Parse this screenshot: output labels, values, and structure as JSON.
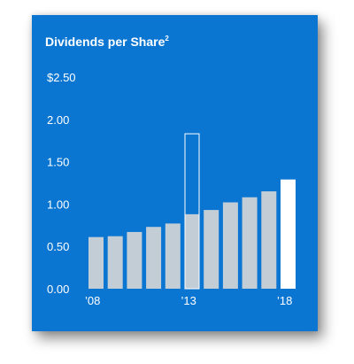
{
  "chart_data": {
    "type": "bar",
    "title": "Dividends per Share",
    "title_superscript": "2",
    "categories": [
      "2008",
      "2009",
      "2010",
      "2011",
      "2012",
      "2013",
      "2014",
      "2015",
      "2016",
      "2017",
      "2018"
    ],
    "values": [
      0.61,
      0.62,
      0.67,
      0.73,
      0.77,
      0.88,
      0.93,
      1.02,
      1.08,
      1.15,
      1.29
    ],
    "outline_bar": {
      "category": "2013",
      "value": 1.83
    },
    "highlight_category": "2018",
    "ylim": [
      0,
      2.5
    ],
    "y_ticks": [
      {
        "value": 2.5,
        "label": "$2.50"
      },
      {
        "value": 2.0,
        "label": "2.00"
      },
      {
        "value": 1.5,
        "label": "1.50"
      },
      {
        "value": 1.0,
        "label": "1.00"
      },
      {
        "value": 0.5,
        "label": "0.50"
      },
      {
        "value": 0.0,
        "label": "0.00"
      }
    ],
    "x_tick_labels": [
      {
        "category": "2008",
        "label": "’08"
      },
      {
        "category": "2013",
        "label": "’13"
      },
      {
        "category": "2018",
        "label": "’18"
      }
    ],
    "grid": false,
    "legend": "none"
  },
  "colors": {
    "background": "#0b76d2",
    "bar": "#c3cdd6",
    "highlight_bar": "#ffffff",
    "outline_bar": "#ffffff",
    "text": "#ffffff"
  }
}
